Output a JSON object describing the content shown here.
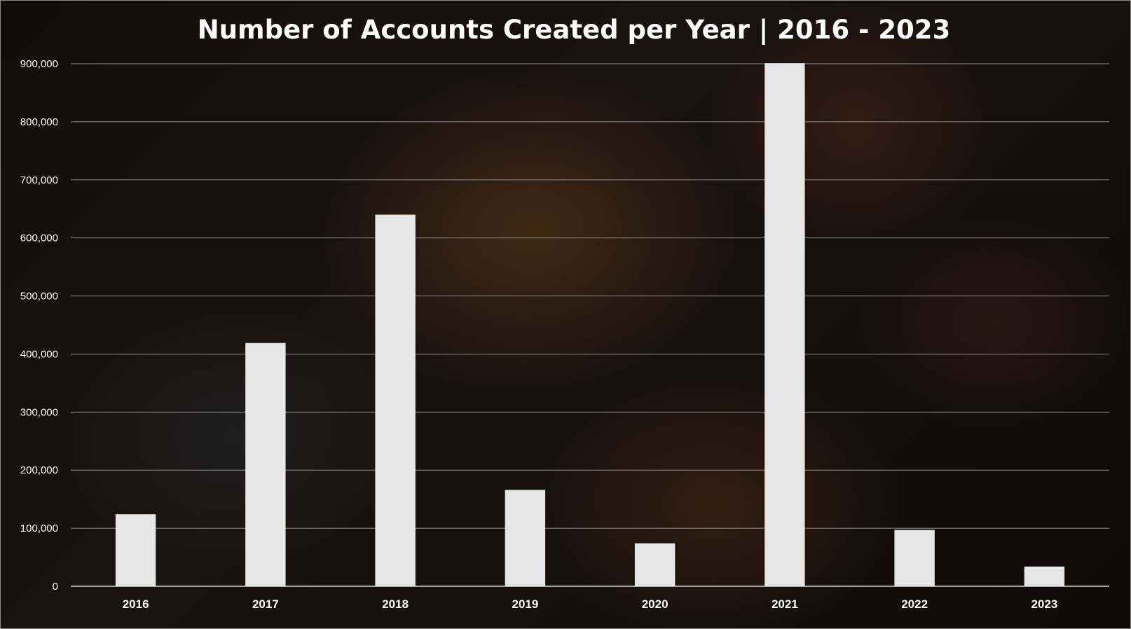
{
  "chart_data": {
    "type": "bar",
    "title": "Number of Accounts Created per Year | 2016 - 2023",
    "xlabel": "",
    "ylabel": "",
    "categories": [
      "2016",
      "2017",
      "2018",
      "2019",
      "2020",
      "2021",
      "2022",
      "2023"
    ],
    "values": [
      124000,
      419000,
      640000,
      166000,
      74000,
      901000,
      97000,
      34000
    ],
    "ylim": [
      0,
      900000
    ],
    "yticks": [
      0,
      100000,
      200000,
      300000,
      400000,
      500000,
      600000,
      700000,
      800000,
      900000
    ],
    "ytick_labels": [
      "0",
      "100,000",
      "200,000",
      "300,000",
      "400,000",
      "500,000",
      "600,000",
      "700,000",
      "800,000",
      "900,000"
    ],
    "grid": true,
    "legend": "none",
    "colors": {
      "bar": "#e6e6e6",
      "background": "#150f0d",
      "gridline": "#8c8c8c",
      "text": "#ffffff"
    }
  }
}
